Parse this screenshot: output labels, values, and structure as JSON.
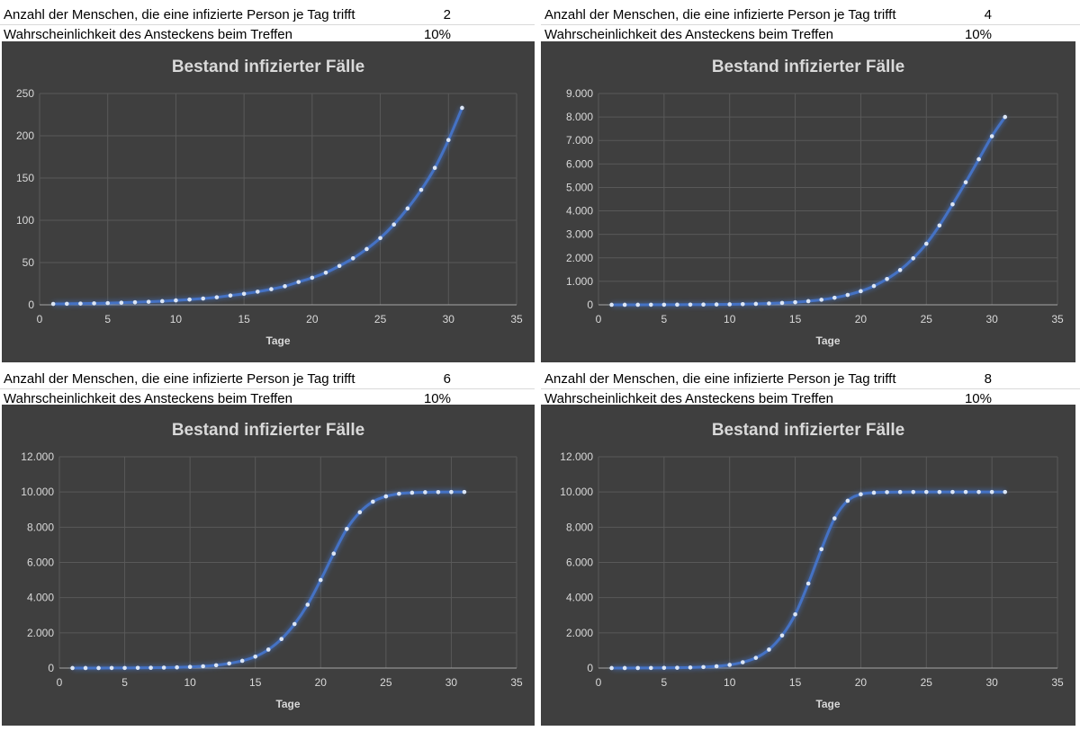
{
  "panels": [
    {
      "contacts_label": "Anzahl der Menschen, die eine infizierte Person je Tag trifft",
      "contacts_value": "2",
      "probability_label": "Wahrscheinlichkeit des Ansteckens beim Treffen",
      "probability_value": "10%"
    },
    {
      "contacts_label": "Anzahl der Menschen, die eine infizierte Person je Tag trifft",
      "contacts_value": "4",
      "probability_label": "Wahrscheinlichkeit des Ansteckens beim Treffen",
      "probability_value": "10%"
    },
    {
      "contacts_label": "Anzahl der Menschen, die eine infizierte Person je Tag trifft",
      "contacts_value": "6",
      "probability_label": "Wahrscheinlichkeit des Ansteckens beim Treffen",
      "probability_value": "10%"
    },
    {
      "contacts_label": "Anzahl der Menschen, die eine infizierte Person je Tag trifft",
      "contacts_value": "8",
      "probability_label": "Wahrscheinlichkeit des Ansteckens beim Treffen",
      "probability_value": "10%"
    }
  ],
  "chart_data": [
    {
      "type": "line",
      "title": "Bestand infizierter Fälle",
      "xlabel": "Tage",
      "ylabel": "",
      "xlim": [
        0,
        35
      ],
      "ylim": [
        0,
        250
      ],
      "x_ticks": [
        0,
        5,
        10,
        15,
        20,
        25,
        30,
        35
      ],
      "x_tick_labels": [
        "0",
        "5",
        "10",
        "15",
        "20",
        "25",
        "30",
        "35"
      ],
      "y_ticks": [
        0,
        50,
        100,
        150,
        200,
        250
      ],
      "y_tick_labels": [
        "0",
        "50",
        "100",
        "150",
        "200",
        "250"
      ],
      "grid": true,
      "line_color": "#4472c4",
      "marker_color": "#dce6f5",
      "series": [
        {
          "name": "Bestand infizierter Fälle",
          "x": [
            1,
            2,
            3,
            4,
            5,
            6,
            7,
            8,
            9,
            10,
            11,
            12,
            13,
            14,
            15,
            16,
            17,
            18,
            19,
            20,
            21,
            22,
            23,
            24,
            25,
            26,
            27,
            28,
            29,
            30,
            31
          ],
          "values": [
            1,
            1.2,
            1.4,
            1.7,
            2,
            2.5,
            3,
            3.6,
            4.3,
            5.2,
            6.2,
            7.4,
            8.9,
            11,
            13,
            15.5,
            18.5,
            22,
            27,
            32,
            38,
            46,
            55,
            66,
            79,
            95,
            114,
            136,
            162,
            195,
            233
          ]
        }
      ]
    },
    {
      "type": "line",
      "title": "Bestand infizierter Fälle",
      "xlabel": "Tage",
      "ylabel": "",
      "xlim": [
        0,
        35
      ],
      "ylim": [
        0,
        9000
      ],
      "x_ticks": [
        0,
        5,
        10,
        15,
        20,
        25,
        30,
        35
      ],
      "x_tick_labels": [
        "0",
        "5",
        "10",
        "15",
        "20",
        "25",
        "30",
        "35"
      ],
      "y_ticks": [
        0,
        1000,
        2000,
        3000,
        4000,
        5000,
        6000,
        7000,
        8000,
        9000
      ],
      "y_tick_labels": [
        "0",
        "1.000",
        "2.000",
        "3.000",
        "4.000",
        "5.000",
        "6.000",
        "7.000",
        "8.000",
        "9.000"
      ],
      "grid": true,
      "line_color": "#4472c4",
      "marker_color": "#dce6f5",
      "series": [
        {
          "name": "Bestand infizierter Fälle",
          "x": [
            1,
            2,
            3,
            4,
            5,
            6,
            7,
            8,
            9,
            10,
            11,
            12,
            13,
            14,
            15,
            16,
            17,
            18,
            19,
            20,
            21,
            22,
            23,
            24,
            25,
            26,
            27,
            28,
            29,
            30,
            31
          ],
          "values": [
            1,
            1.4,
            2,
            2.7,
            3.8,
            5.4,
            7.5,
            10.5,
            15,
            21,
            29,
            40,
            57,
            80,
            110,
            155,
            215,
            300,
            420,
            580,
            800,
            1100,
            1480,
            1980,
            2600,
            3380,
            4280,
            5220,
            6200,
            7180,
            8000
          ]
        }
      ]
    },
    {
      "type": "line",
      "title": "Bestand infizierter Fälle",
      "xlabel": "Tage",
      "ylabel": "",
      "xlim": [
        0,
        35
      ],
      "ylim": [
        0,
        12000
      ],
      "x_ticks": [
        0,
        5,
        10,
        15,
        20,
        25,
        30,
        35
      ],
      "x_tick_labels": [
        "0",
        "5",
        "10",
        "15",
        "20",
        "25",
        "30",
        "35"
      ],
      "y_ticks": [
        0,
        2000,
        4000,
        6000,
        8000,
        10000,
        12000
      ],
      "y_tick_labels": [
        "0",
        "2.000",
        "4.000",
        "6.000",
        "8.000",
        "10.000",
        "12.000"
      ],
      "grid": true,
      "line_color": "#4472c4",
      "marker_color": "#dce6f5",
      "series": [
        {
          "name": "Bestand infizierter Fälle",
          "x": [
            1,
            2,
            3,
            4,
            5,
            6,
            7,
            8,
            9,
            10,
            11,
            12,
            13,
            14,
            15,
            16,
            17,
            18,
            19,
            20,
            21,
            22,
            23,
            24,
            25,
            26,
            27,
            28,
            29,
            30,
            31
          ],
          "values": [
            1,
            1.6,
            2.6,
            4,
            6.5,
            10,
            16,
            26,
            40,
            65,
            100,
            160,
            260,
            410,
            650,
            1050,
            1650,
            2500,
            3600,
            5000,
            6500,
            7900,
            8850,
            9450,
            9750,
            9900,
            9960,
            9985,
            9995,
            9999,
            10000
          ]
        }
      ]
    },
    {
      "type": "line",
      "title": "Bestand infizierter Fälle",
      "xlabel": "Tage",
      "ylabel": "",
      "xlim": [
        0,
        35
      ],
      "ylim": [
        0,
        12000
      ],
      "x_ticks": [
        0,
        5,
        10,
        15,
        20,
        25,
        30,
        35
      ],
      "x_tick_labels": [
        "0",
        "5",
        "10",
        "15",
        "20",
        "25",
        "30",
        "35"
      ],
      "y_ticks": [
        0,
        2000,
        4000,
        6000,
        8000,
        10000,
        12000
      ],
      "y_tick_labels": [
        "0",
        "2.000",
        "4.000",
        "6.000",
        "8.000",
        "10.000",
        "12.000"
      ],
      "grid": true,
      "line_color": "#4472c4",
      "marker_color": "#dce6f5",
      "series": [
        {
          "name": "Bestand infizierter Fälle",
          "x": [
            1,
            2,
            3,
            4,
            5,
            6,
            7,
            8,
            9,
            10,
            11,
            12,
            13,
            14,
            15,
            16,
            17,
            18,
            19,
            20,
            21,
            22,
            23,
            24,
            25,
            26,
            27,
            28,
            29,
            30,
            31
          ],
          "values": [
            1,
            1.8,
            3.2,
            5.8,
            10,
            18,
            32,
            58,
            100,
            180,
            330,
            580,
            1050,
            1850,
            3050,
            4800,
            6750,
            8500,
            9500,
            9870,
            9960,
            9990,
            9998,
            10000,
            10000,
            10000,
            10000,
            10000,
            10000,
            10000,
            10000
          ]
        }
      ]
    }
  ]
}
